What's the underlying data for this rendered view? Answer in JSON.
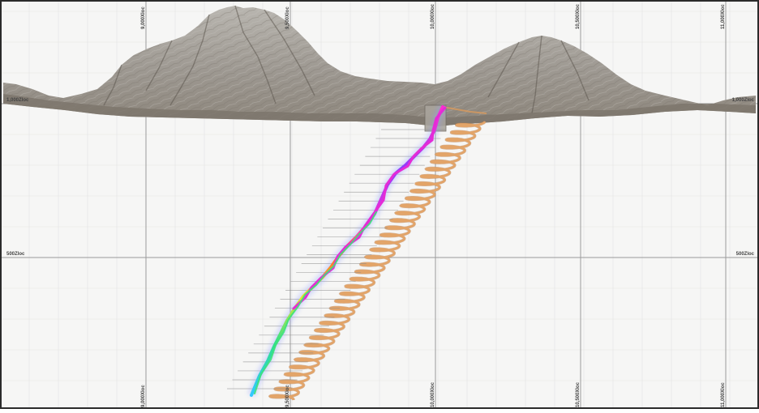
{
  "section_view": {
    "colors": {
      "background": "#f6f6f5",
      "grid_major": "#9a9a9a",
      "grid_minor": "#e3e3e3",
      "terrain": "#a19d97",
      "terrain_shadow": "#6f6a63",
      "spiral": "#e3a468",
      "border": "#2b2b2b"
    },
    "grid_labels": {
      "x_top": [
        {
          "text": "9,000Xloc"
        },
        {
          "text": "9,500Xloc"
        },
        {
          "text": "10,000Xloc"
        },
        {
          "text": "10,500Xloc"
        },
        {
          "text": "11,000Xloc"
        }
      ],
      "x_bottom": [
        {
          "text": "9,000Xloc"
        },
        {
          "text": "9,500Xloc"
        },
        {
          "text": "10,000Xloc"
        },
        {
          "text": "10,500Xloc"
        },
        {
          "text": "11,000Xloc"
        }
      ],
      "z_left": [
        {
          "text": "1,000Zloc"
        },
        {
          "text": "500Zloc"
        }
      ],
      "z_right": [
        {
          "text": "1,000Zloc"
        },
        {
          "text": "500Zloc"
        }
      ]
    },
    "objects": {
      "terrain_surface": "terrain-mesh",
      "spiral_ramp": "spiral-decline",
      "drill_traces": [
        "drillhole-magenta",
        "drillhole-rainbow",
        "drillhole-green"
      ]
    }
  }
}
